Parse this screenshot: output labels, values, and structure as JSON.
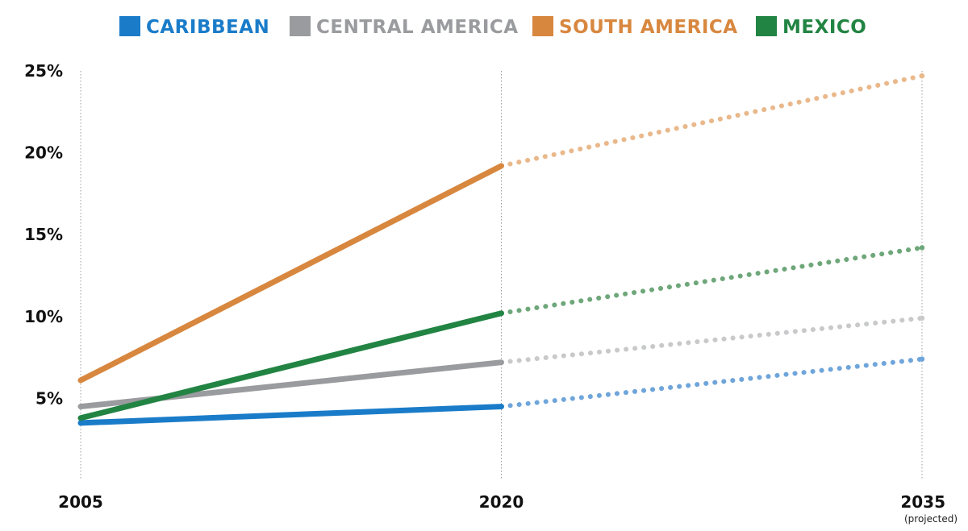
{
  "chart_data": {
    "type": "line",
    "title": "",
    "xlabel": "",
    "ylabel": "",
    "x": [
      2005,
      2020,
      2035
    ],
    "x_tick_labels": [
      "2005",
      "2020",
      "2035"
    ],
    "x_tick_sublabels": [
      "",
      "",
      "(projected)"
    ],
    "y_ticks": [
      5,
      10,
      15,
      20,
      25
    ],
    "y_tick_labels": [
      "5%",
      "10%",
      "15%",
      "20%",
      "25%"
    ],
    "ylim": [
      0,
      25
    ],
    "grid": "vertical dotted at each year",
    "legend_position": "top-center",
    "projection_start": 2020,
    "projected_style": "dotted",
    "series": [
      {
        "name": "CARIBBEAN",
        "color": "#1a7cc9",
        "projected_color": "#6fa5da",
        "values": [
          3.5,
          4.5,
          7.4
        ]
      },
      {
        "name": "CENTRAL AMERICA",
        "color": "#9a9b9e",
        "projected_color": "#c8c9cb",
        "values": [
          4.5,
          7.2,
          9.9
        ]
      },
      {
        "name": "SOUTH AMERICA",
        "color": "#d8873f",
        "projected_color": "#e9b88b",
        "values": [
          6.1,
          19.2,
          24.7
        ]
      },
      {
        "name": "MEXICO",
        "color": "#228443",
        "projected_color": "#6ea77a",
        "values": [
          3.8,
          10.2,
          14.2
        ]
      }
    ]
  }
}
